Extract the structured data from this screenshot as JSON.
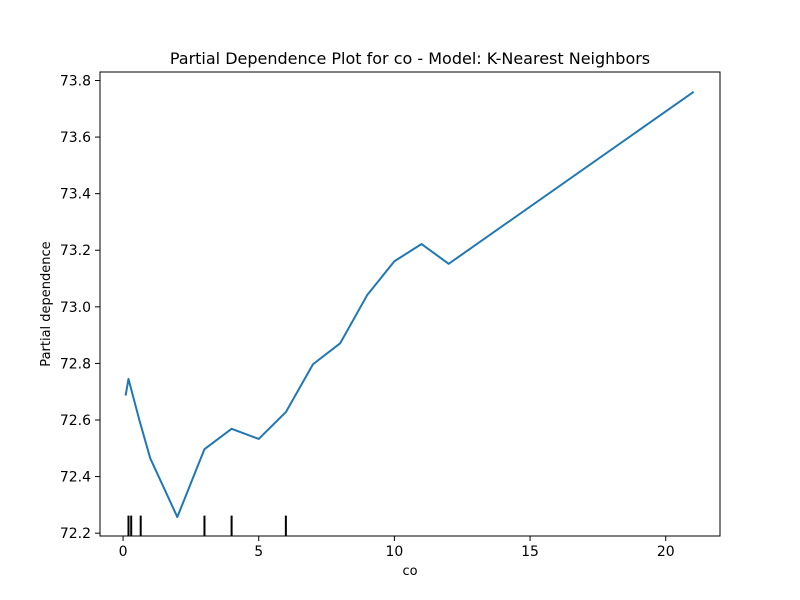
{
  "chart_data": {
    "type": "line",
    "title": "Partial Dependence Plot for co - Model: K-Nearest Neighbors",
    "xlabel": "co",
    "ylabel": "Partial dependence",
    "xlim": [
      -0.85,
      22.0
    ],
    "ylim": [
      72.19,
      73.83
    ],
    "x_ticks": [
      0,
      5,
      10,
      15,
      20
    ],
    "x_tick_labels": [
      "0",
      "5",
      "10",
      "15",
      "20"
    ],
    "y_ticks": [
      72.2,
      72.4,
      72.6,
      72.8,
      73.0,
      73.2,
      73.4,
      73.6,
      73.8
    ],
    "y_tick_labels": [
      "72.2",
      "72.4",
      "72.6",
      "72.8",
      "73.0",
      "73.2",
      "73.4",
      "73.6",
      "73.8"
    ],
    "series": [
      {
        "color": "#1f77b4",
        "x": [
          0.1,
          0.2,
          0.6,
          1.0,
          2.0,
          3.0,
          4.0,
          5.0,
          6.0,
          7.0,
          8.0,
          9.0,
          10.0,
          11.0,
          12.0,
          21.0
        ],
        "y": [
          72.69,
          72.745,
          72.6,
          72.465,
          72.257,
          72.497,
          72.569,
          72.533,
          72.628,
          72.797,
          72.871,
          73.042,
          73.161,
          73.222,
          73.152,
          73.758
        ]
      }
    ],
    "rug": {
      "color": "#000000",
      "x": [
        0.2,
        0.3,
        0.65,
        3.0,
        4.0,
        6.0
      ]
    },
    "grid": false,
    "legend": "none"
  }
}
